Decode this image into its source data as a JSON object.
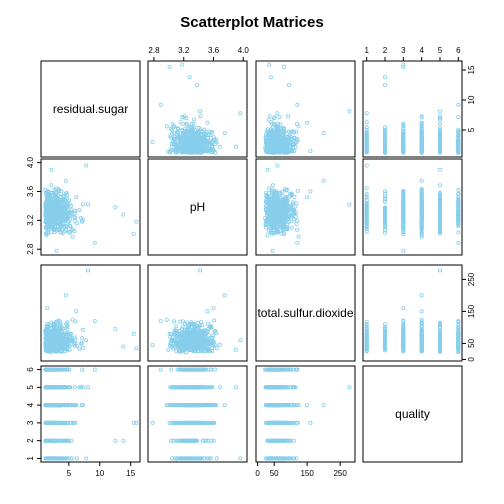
{
  "chart_data": {
    "type": "scatter",
    "title": "Scatterplot Matrices",
    "point_color": "#87CEEB",
    "variables": [
      {
        "name": "residual.sugar",
        "range": [
          0.5,
          16.5
        ],
        "ticks": [
          5,
          10,
          15
        ]
      },
      {
        "name": "pH",
        "range": [
          2.72,
          4.05
        ],
        "ticks": [
          2.8,
          3.2,
          3.6,
          4.0
        ],
        "tick_labels": [
          "2.8",
          "3.2",
          "3.6",
          "4.0"
        ]
      },
      {
        "name": "total.sulfur.dioxide",
        "range": [
          -5,
          295
        ],
        "ticks": [
          0,
          50,
          150,
          250
        ],
        "tick_labels": [
          "0",
          "50",
          "150",
          "250"
        ]
      },
      {
        "name": "quality",
        "range": [
          0.8,
          6.2
        ],
        "ticks": [
          1,
          2,
          3,
          4,
          5,
          6
        ]
      }
    ],
    "axis_sides": {
      "top": [
        1,
        3
      ],
      "right": [
        0,
        2
      ],
      "left": [
        1,
        3
      ],
      "bottom": [
        0,
        2
      ]
    },
    "outliers": [
      {
        "residual.sugar": 15.5,
        "pH": 3.01,
        "total.sulfur.dioxide": 80,
        "quality": 3
      },
      {
        "residual.sugar": 13.8,
        "pH": 3.28,
        "total.sulfur.dioxide": 40,
        "quality": 2
      },
      {
        "residual.sugar": 8.1,
        "pH": 3.42,
        "total.sulfur.dioxide": 278,
        "quality": 5
      },
      {
        "residual.sugar": 6.2,
        "pH": 3.52,
        "total.sulfur.dioxide": 150,
        "quality": 4
      },
      {
        "residual.sugar": 12.5,
        "pH": 3.38,
        "total.sulfur.dioxide": 95,
        "quality": 2
      },
      {
        "residual.sugar": 7.8,
        "pH": 3.96,
        "total.sulfur.dioxide": 60,
        "quality": 1
      },
      {
        "residual.sugar": 9.2,
        "pH": 2.89,
        "total.sulfur.dioxide": 120,
        "quality": 6
      },
      {
        "residual.sugar": 2.2,
        "pH": 3.9,
        "total.sulfur.dioxide": 30,
        "quality": 5
      },
      {
        "residual.sugar": 3.0,
        "pH": 2.78,
        "total.sulfur.dioxide": 45,
        "quality": 3
      },
      {
        "residual.sugar": 4.5,
        "pH": 3.75,
        "total.sulfur.dioxide": 200,
        "quality": 4
      },
      {
        "residual.sugar": 1.5,
        "pH": 3.6,
        "total.sulfur.dioxide": 160,
        "quality": 3
      },
      {
        "residual.sugar": 15.9,
        "pH": 3.18,
        "total.sulfur.dioxide": 35,
        "quality": 3
      }
    ]
  }
}
